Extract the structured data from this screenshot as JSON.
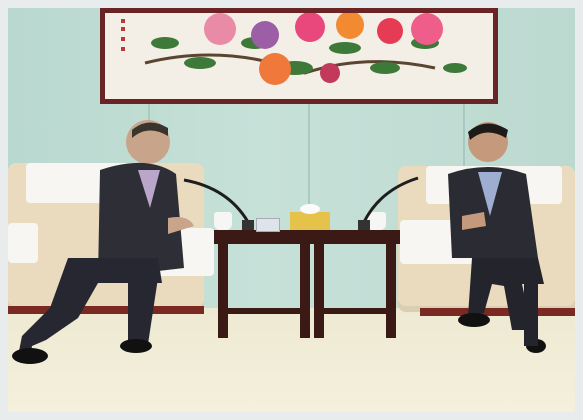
{
  "scene": {
    "colors": {
      "wall": "#c6e1d8",
      "frame": "#6b2424",
      "sofa": "#eadbbf",
      "table": "#3b1915",
      "suit": "#2b2c33",
      "floor": "#f4f0dc"
    },
    "painting": {
      "subject": "peony-flowers"
    }
  }
}
